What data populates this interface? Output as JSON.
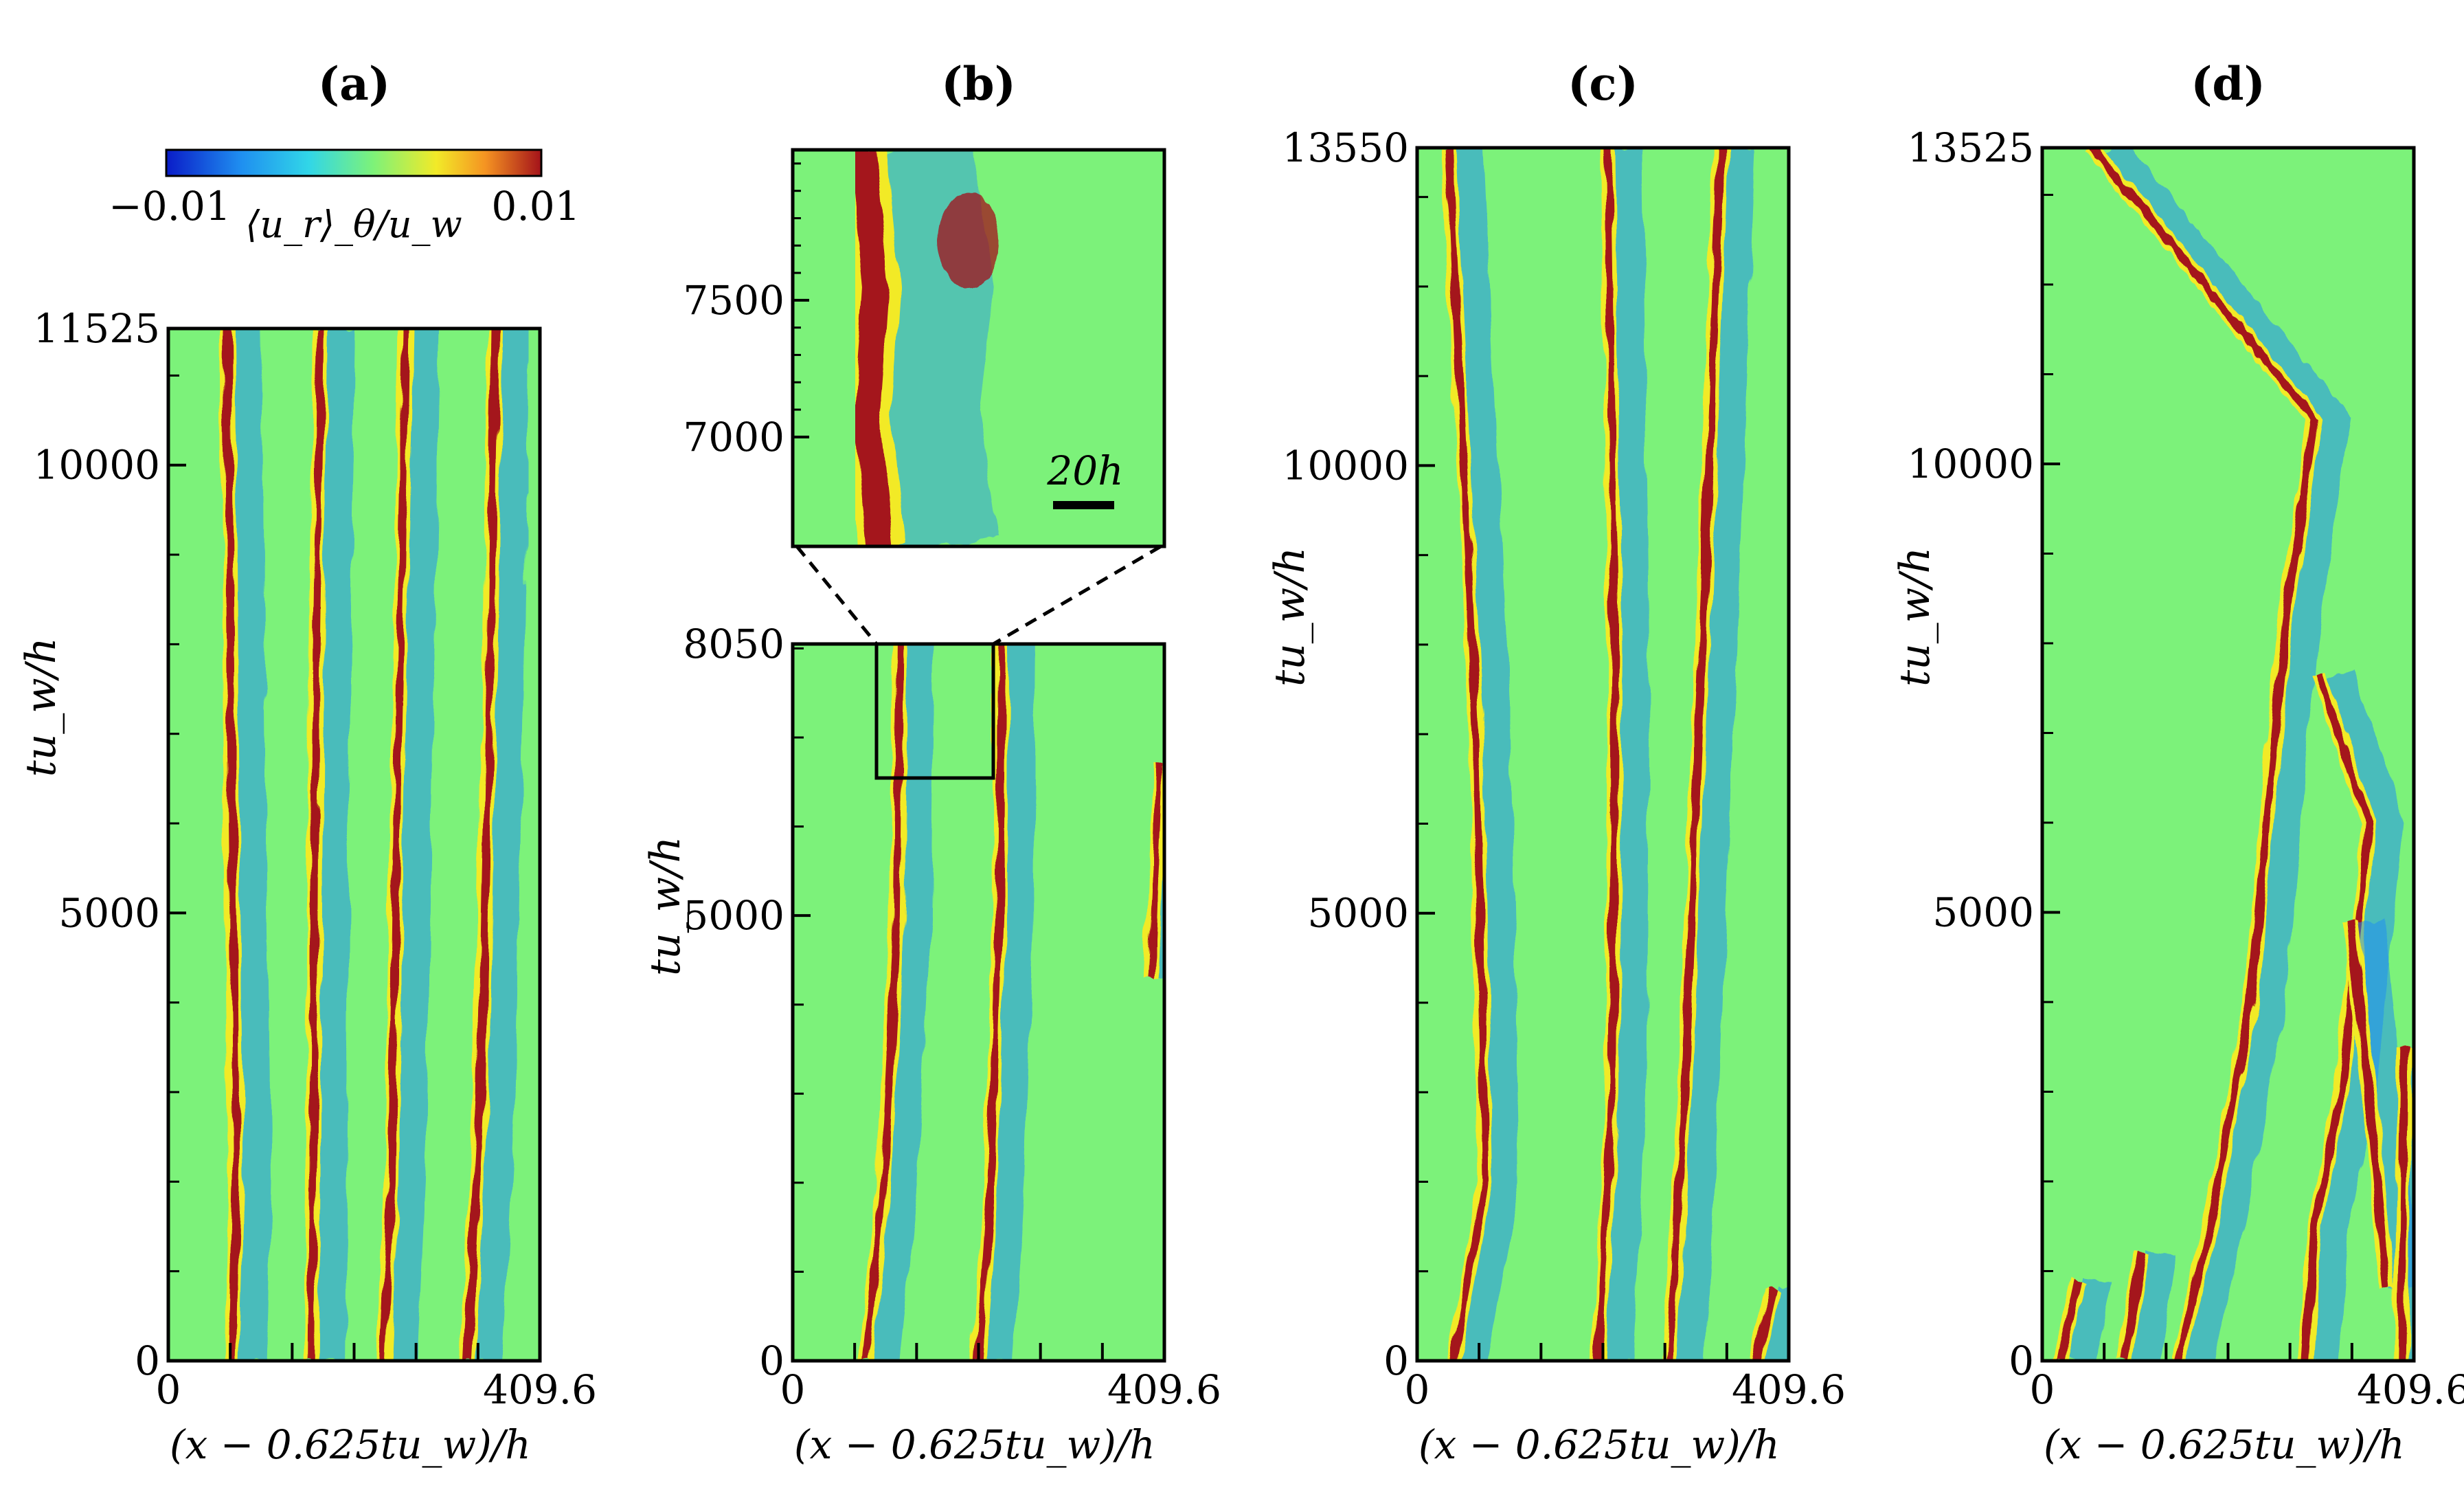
{
  "colorbar": {
    "min_label": "−0.01",
    "max_label": "0.01",
    "label": "⟨u_r⟩_θ/u_w",
    "colors": [
      "#0a1cc8",
      "#1f8ff0",
      "#31d6e8",
      "#7cf27a",
      "#f2ea28",
      "#f59422",
      "#a4121a"
    ],
    "range": [
      -0.01,
      0.01
    ]
  },
  "chart_data": [
    {
      "type": "heatmap",
      "panel": "(a)",
      "xlabel": "(x − 0.625tu_w)/h",
      "ylabel": "tu_w/h",
      "xlim": [
        0,
        409.6
      ],
      "ylim": [
        0,
        11525
      ],
      "x_ticks": [
        "0",
        "409.6"
      ],
      "y_ticks": [
        "0",
        "5000",
        "10000",
        "11525"
      ],
      "fronts": [
        {
          "points": [
            [
              70,
              0
            ],
            [
              75,
              2000
            ],
            [
              70,
              6000
            ],
            [
              65,
              11525
            ]
          ]
        },
        {
          "points": [
            [
              158,
              0
            ],
            [
              160,
              3000
            ],
            [
              163,
              8000
            ],
            [
              168,
              11525
            ]
          ]
        },
        {
          "points": [
            [
              237,
              0
            ],
            [
              246,
              2000
            ],
            [
              252,
              6000
            ],
            [
              262,
              11525
            ]
          ]
        },
        {
          "points": [
            [
              330,
              0
            ],
            [
              345,
              3000
            ],
            [
              355,
              8000
            ],
            [
              360,
              11525
            ]
          ]
        }
      ]
    },
    {
      "type": "heatmap",
      "panel": "(b)",
      "xlabel": "(x − 0.625tu_w)/h",
      "ylabel": "tu_w/h",
      "xlim": [
        0,
        409.6
      ],
      "ylim": [
        0,
        8050
      ],
      "x_ticks": [
        "0",
        "409.6"
      ],
      "y_ticks": [
        "0",
        "5000",
        "8050"
      ],
      "fronts": [
        {
          "points": [
            [
              80,
              0
            ],
            [
              100,
              2000
            ],
            [
              115,
              5000
            ],
            [
              118,
              8050
            ]
          ]
        },
        {
          "points": [
            [
              205,
              0
            ],
            [
              218,
              2000
            ],
            [
              228,
              5000
            ],
            [
              230,
              8050
            ]
          ]
        },
        {
          "points": [
            [
              395,
              4300
            ],
            [
              405,
              6700
            ]
          ]
        }
      ],
      "inset": {
        "ylim": [
          6600,
          8050
        ],
        "y_ticks": [
          "7000",
          "7500"
        ],
        "scale_bar": "20h"
      }
    },
    {
      "type": "heatmap",
      "panel": "(c)",
      "xlabel": "(x − 0.625tu_w)/h",
      "ylabel": "tu_w/h",
      "xlim": [
        0,
        409.6
      ],
      "ylim": [
        0,
        13550
      ],
      "x_ticks": [
        "0",
        "409.6"
      ],
      "y_ticks": [
        "0",
        "5000",
        "10000",
        "13550"
      ],
      "fronts": [
        {
          "points": [
            [
              40,
              0
            ],
            [
              75,
              2000
            ],
            [
              65,
              7000
            ],
            [
              35,
              13550
            ]
          ]
        },
        {
          "points": [
            [
              200,
              0
            ],
            [
              215,
              3000
            ],
            [
              218,
              8000
            ],
            [
              210,
              13550
            ]
          ]
        },
        {
          "points": [
            [
              278,
              0
            ],
            [
              295,
              3000
            ],
            [
              318,
              9000
            ],
            [
              335,
              13550
            ]
          ]
        },
        {
          "points": [
            [
              375,
              0
            ],
            [
              392,
              800
            ]
          ]
        }
      ]
    },
    {
      "type": "heatmap",
      "panel": "(d)",
      "xlabel": "(x − 0.625tu_w)/h",
      "ylabel": "tu_w/h",
      "xlim": [
        0,
        409.6
      ],
      "ylim": [
        0,
        13525
      ],
      "x_ticks": [
        "0",
        "409.6"
      ],
      "y_ticks": [
        "0",
        "5000",
        "10000",
        "13525"
      ],
      "fronts": [
        {
          "points": [
            [
              20,
              0
            ],
            [
              40,
              900
            ]
          ]
        },
        {
          "points": [
            [
              90,
              0
            ],
            [
              110,
              1200
            ]
          ]
        },
        {
          "points": [
            [
              150,
              0
            ],
            [
              185,
              1500
            ],
            [
              230,
              4000
            ],
            [
              265,
              8000
            ],
            [
              300,
              10500
            ],
            [
              55,
              13525
            ]
          ]
        },
        {
          "points": [
            [
              290,
              0
            ],
            [
              300,
              1500
            ],
            [
              330,
              3000
            ],
            [
              360,
              6000
            ],
            [
              305,
              7650
            ]
          ]
        },
        {
          "points": [
            [
              380,
              800
            ],
            [
              365,
              2500
            ],
            [
              340,
              4900
            ]
          ]
        },
        {
          "points": [
            [
              395,
              0
            ],
            [
              400,
              3500
            ]
          ]
        }
      ]
    }
  ]
}
